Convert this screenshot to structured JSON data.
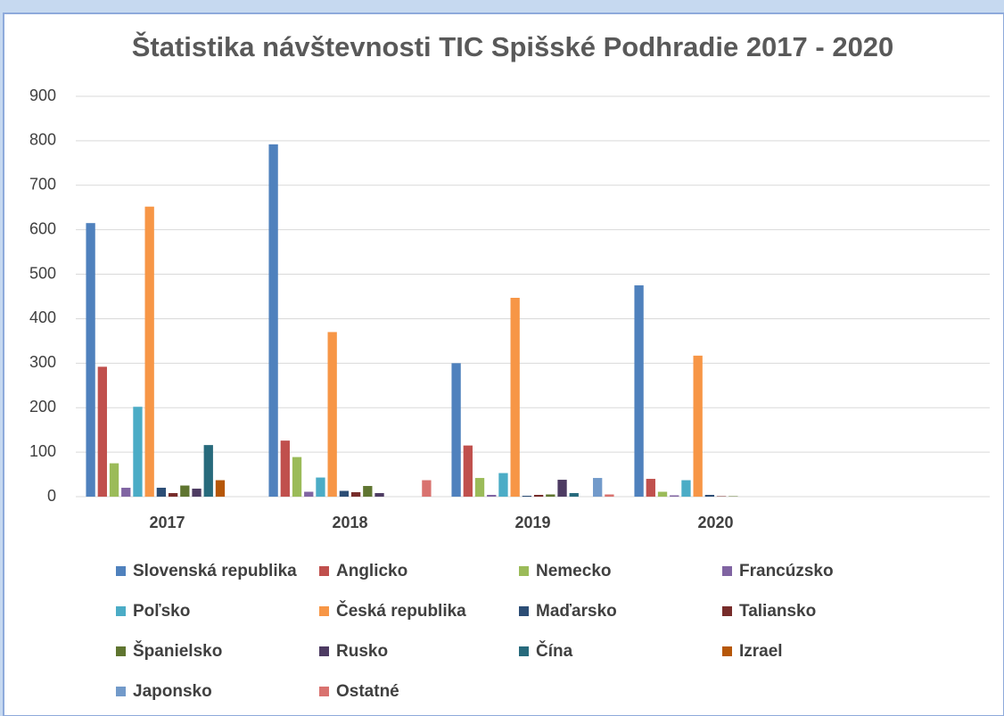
{
  "chart_data": {
    "type": "bar",
    "title": "Štatistika návštevnosti TIC Spišské Podhradie 2017 - 2020",
    "categories": [
      "2017",
      "2018",
      "2019",
      "2020",
      null
    ],
    "ylim": [
      0,
      900
    ],
    "yticks": [
      0,
      100,
      200,
      300,
      400,
      500,
      600,
      700,
      800,
      900
    ],
    "grid": true,
    "legend": "bottom",
    "series": [
      {
        "name": "Slovenská republika",
        "color": "#4f81bd",
        "values": [
          615,
          792,
          300,
          475,
          null
        ]
      },
      {
        "name": "Anglicko",
        "color": "#c0504d",
        "values": [
          292,
          126,
          115,
          40,
          null
        ]
      },
      {
        "name": "Nemecko",
        "color": "#9bbb59",
        "values": [
          75,
          89,
          42,
          11,
          null
        ]
      },
      {
        "name": "Francúzsko",
        "color": "#8064a2",
        "values": [
          20,
          11,
          4,
          3,
          null
        ]
      },
      {
        "name": "Poľsko",
        "color": "#4bacc6",
        "values": [
          202,
          43,
          53,
          37,
          null
        ]
      },
      {
        "name": "Česká republika",
        "color": "#f79646",
        "values": [
          652,
          370,
          447,
          317,
          null
        ]
      },
      {
        "name": "Maďarsko",
        "color": "#2c4d75",
        "values": [
          20,
          13,
          2,
          4,
          null
        ]
      },
      {
        "name": "Taliansko",
        "color": "#772c2a",
        "values": [
          8,
          10,
          4,
          1,
          null
        ]
      },
      {
        "name": "Španielsko",
        "color": "#5f7530",
        "values": [
          25,
          24,
          5,
          1,
          null
        ]
      },
      {
        "name": "Rusko",
        "color": "#4d3b62",
        "values": [
          18,
          8,
          38,
          0,
          null
        ]
      },
      {
        "name": "Čína",
        "color": "#276a7c",
        "values": [
          116,
          0,
          8,
          0,
          null
        ]
      },
      {
        "name": "Izrael",
        "color": "#b65708",
        "values": [
          37,
          0,
          0,
          0,
          null
        ]
      },
      {
        "name": "Japonsko",
        "color": "#729aca",
        "values": [
          0,
          0,
          42,
          0,
          null
        ]
      },
      {
        "name": "Ostatné",
        "color": "#d9726f",
        "values": [
          0,
          37,
          5,
          0,
          null
        ]
      }
    ]
  }
}
